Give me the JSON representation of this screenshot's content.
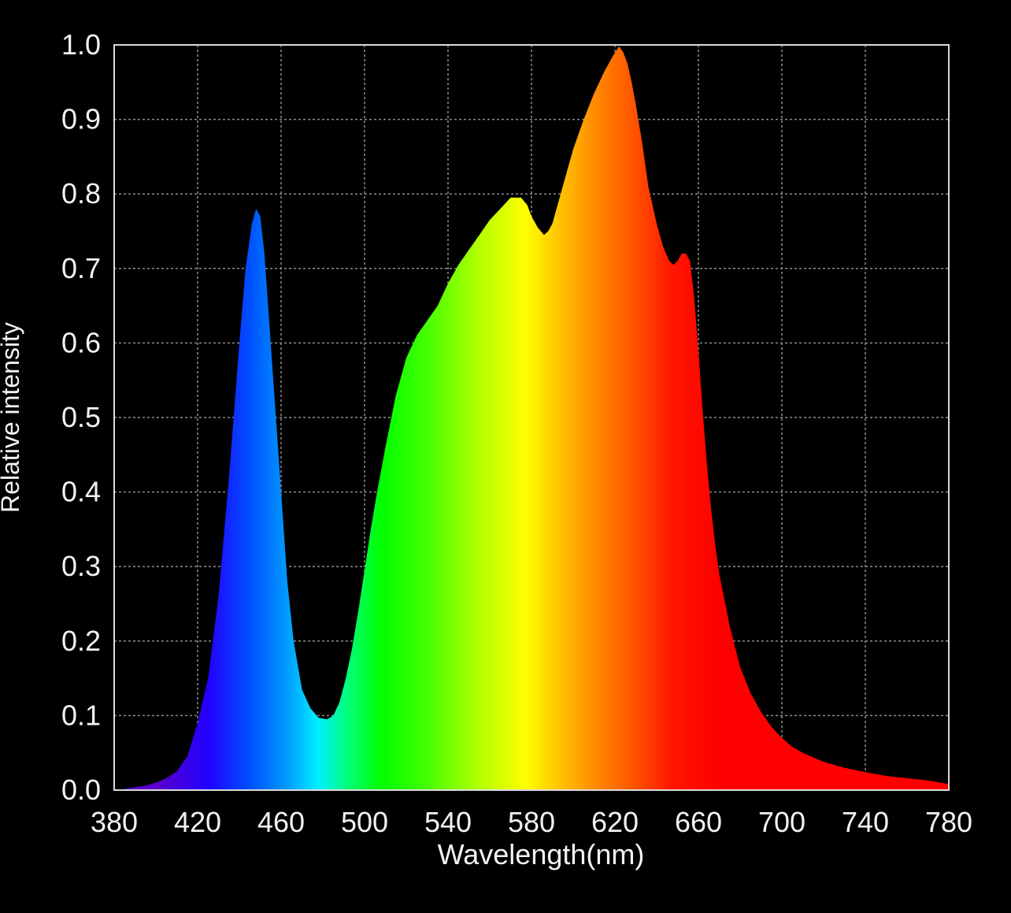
{
  "chart_data": {
    "type": "area",
    "title": "",
    "xlabel": "Wavelength(nm)",
    "ylabel": "Relative intensity",
    "xlim": [
      380,
      780
    ],
    "ylim": [
      0,
      1.0
    ],
    "x_ticks": [
      380,
      420,
      460,
      500,
      540,
      580,
      620,
      660,
      700,
      740,
      780
    ],
    "y_ticks": [
      0.0,
      0.1,
      0.2,
      0.3,
      0.4,
      0.5,
      0.6,
      0.7,
      0.8,
      0.9,
      1.0
    ],
    "grid": true,
    "background_color": "#000000",
    "frame_color": "#d9d9d9",
    "grid_color": "#8c8c8c",
    "fill": "visible-spectrum gradient by wavelength",
    "spectrum_colors": [
      {
        "nm": 400,
        "color": "#5a00c8"
      },
      {
        "nm": 425,
        "color": "#2200ff"
      },
      {
        "nm": 445,
        "color": "#0050ff"
      },
      {
        "nm": 462,
        "color": "#0096ff"
      },
      {
        "nm": 478,
        "color": "#00f0ff"
      },
      {
        "nm": 492,
        "color": "#00ff78"
      },
      {
        "nm": 508,
        "color": "#00ff00"
      },
      {
        "nm": 530,
        "color": "#46ff00"
      },
      {
        "nm": 555,
        "color": "#b4ff00"
      },
      {
        "nm": 577,
        "color": "#ffff00"
      },
      {
        "nm": 592,
        "color": "#ffc800"
      },
      {
        "nm": 610,
        "color": "#ff8c00"
      },
      {
        "nm": 630,
        "color": "#ff5000"
      },
      {
        "nm": 648,
        "color": "#ff1400"
      },
      {
        "nm": 670,
        "color": "#ff0000"
      },
      {
        "nm": 780,
        "color": "#ff0000"
      }
    ],
    "series": [
      {
        "x": [
          385,
          390,
          395,
          400,
          405,
          410,
          415,
          420,
          425,
          430,
          435,
          440,
          443,
          446,
          448,
          450,
          452,
          454,
          457,
          460,
          463,
          466,
          470,
          474,
          478,
          482,
          485,
          488,
          491,
          494,
          497,
          500,
          503,
          506,
          510,
          515,
          520,
          525,
          530,
          535,
          540,
          545,
          550,
          555,
          560,
          565,
          570,
          575,
          578,
          580,
          583,
          586,
          588,
          590,
          593,
          597,
          600,
          605,
          610,
          615,
          620,
          622,
          624,
          626,
          628,
          630,
          633,
          636,
          640,
          643,
          646,
          648,
          650,
          652,
          654,
          656,
          658,
          660,
          662,
          664,
          666,
          668,
          670,
          675,
          680,
          685,
          690,
          695,
          700,
          705,
          710,
          720,
          730,
          740,
          750,
          760,
          770,
          780
        ],
        "y": [
          0.002,
          0.004,
          0.006,
          0.01,
          0.016,
          0.025,
          0.045,
          0.09,
          0.15,
          0.26,
          0.42,
          0.6,
          0.7,
          0.76,
          0.78,
          0.77,
          0.72,
          0.64,
          0.52,
          0.4,
          0.28,
          0.2,
          0.135,
          0.11,
          0.097,
          0.095,
          0.1,
          0.118,
          0.15,
          0.19,
          0.24,
          0.295,
          0.35,
          0.4,
          0.46,
          0.53,
          0.58,
          0.61,
          0.63,
          0.65,
          0.68,
          0.705,
          0.725,
          0.745,
          0.765,
          0.78,
          0.795,
          0.795,
          0.785,
          0.77,
          0.755,
          0.745,
          0.75,
          0.76,
          0.79,
          0.83,
          0.86,
          0.9,
          0.935,
          0.965,
          0.99,
          0.998,
          0.99,
          0.975,
          0.95,
          0.92,
          0.87,
          0.81,
          0.76,
          0.73,
          0.71,
          0.705,
          0.71,
          0.72,
          0.72,
          0.71,
          0.66,
          0.59,
          0.51,
          0.44,
          0.38,
          0.33,
          0.29,
          0.22,
          0.165,
          0.13,
          0.105,
          0.085,
          0.07,
          0.058,
          0.05,
          0.038,
          0.03,
          0.024,
          0.019,
          0.016,
          0.013,
          0.008
        ]
      }
    ]
  }
}
